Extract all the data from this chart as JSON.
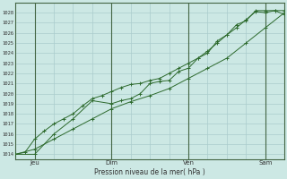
{
  "background_color": "#cce8e4",
  "grid_color": "#aacccc",
  "line_color": "#2d6a2d",
  "sep_color": "#446644",
  "ylabel": "Pression niveau de la mer( hPa )",
  "ylim": [
    1013.5,
    1029.0
  ],
  "yticks": [
    1014,
    1015,
    1016,
    1017,
    1018,
    1019,
    1020,
    1021,
    1022,
    1023,
    1024,
    1025,
    1026,
    1027,
    1028
  ],
  "xlim": [
    0,
    84
  ],
  "xtick_positions": [
    6,
    30,
    54,
    78
  ],
  "xtick_labels": [
    "Jeu",
    "Dim",
    "Ven",
    "Sam"
  ],
  "line1_x": [
    0,
    3,
    6,
    9,
    12,
    15,
    18,
    21,
    24,
    27,
    30,
    33,
    36,
    39,
    42,
    45,
    48,
    51,
    54,
    57,
    60,
    63,
    66,
    69,
    72,
    75,
    78,
    81,
    84
  ],
  "line1_y": [
    1014.0,
    1014.2,
    1015.5,
    1016.3,
    1017.0,
    1017.5,
    1018.0,
    1018.8,
    1019.5,
    1019.8,
    1020.2,
    1020.6,
    1020.9,
    1021.0,
    1021.3,
    1021.5,
    1022.0,
    1022.5,
    1023.0,
    1023.5,
    1024.2,
    1025.0,
    1025.8,
    1026.5,
    1027.3,
    1028.1,
    1028.0,
    1028.2,
    1027.8
  ],
  "line2_x": [
    0,
    6,
    12,
    18,
    24,
    30,
    36,
    42,
    48,
    54,
    60,
    66,
    72,
    78,
    84
  ],
  "line2_y": [
    1014.0,
    1014.5,
    1015.5,
    1016.5,
    1017.5,
    1018.5,
    1019.2,
    1019.8,
    1020.5,
    1021.5,
    1022.5,
    1023.5,
    1025.0,
    1026.5,
    1028.0
  ],
  "line3_x": [
    0,
    6,
    12,
    18,
    24,
    30,
    33,
    36,
    39,
    42,
    45,
    48,
    51,
    54,
    57,
    60,
    63,
    66,
    69,
    72,
    75,
    78,
    81,
    84
  ],
  "line3_y": [
    1014.0,
    1014.0,
    1016.0,
    1017.5,
    1019.3,
    1019.0,
    1019.3,
    1019.5,
    1020.0,
    1021.0,
    1021.2,
    1021.3,
    1022.2,
    1022.5,
    1023.5,
    1024.0,
    1025.2,
    1025.8,
    1026.8,
    1027.2,
    1028.2,
    1028.2,
    1028.2,
    1028.2
  ]
}
